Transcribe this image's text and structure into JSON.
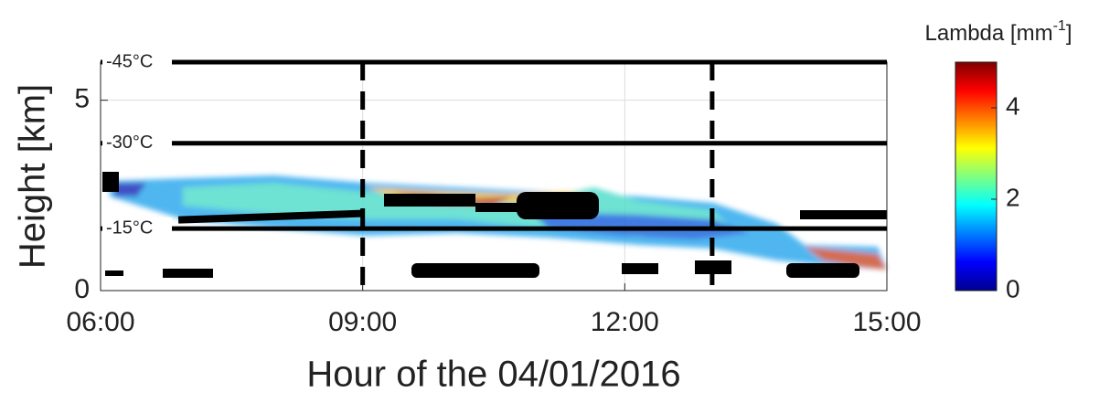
{
  "chart_data": {
    "type": "time-height",
    "xlabel": "Hour of the 04/01/2016",
    "ylabel": "Height [km]",
    "xlim": [
      6,
      15
    ],
    "xticks": [
      {
        "value": 6,
        "label": "06:00"
      },
      {
        "value": 9,
        "label": "09:00"
      },
      {
        "value": 12,
        "label": "12:00"
      },
      {
        "value": 15,
        "label": "15:00"
      }
    ],
    "ylim": [
      0,
      6
    ],
    "yticks": [
      0,
      5
    ],
    "grid": true,
    "vlines": [
      9,
      13
    ],
    "isotherms": [
      {
        "label": "-45°C",
        "height": 6
      },
      {
        "label": "-30°C",
        "height": 3.87
      },
      {
        "label": "-15°C",
        "height": 1.63
      }
    ],
    "colorbar": {
      "label": "Lambda [mm",
      "label_sup": "-1",
      "label_end": "]",
      "clim": [
        0,
        5
      ],
      "ticks": [
        0,
        2,
        4
      ],
      "colormap": [
        "#00008f",
        "#0000ff",
        "#0080ff",
        "#00ffff",
        "#80ff80",
        "#ffff00",
        "#ff8000",
        "#ff0000",
        "#800000"
      ]
    }
  }
}
